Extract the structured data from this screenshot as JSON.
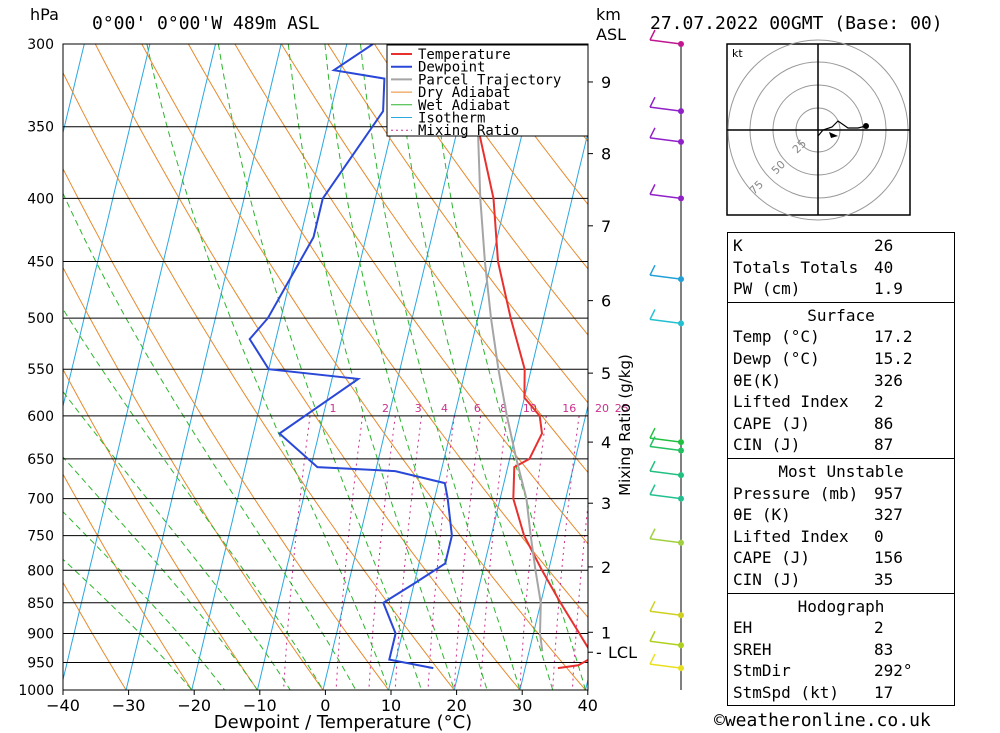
{
  "header": {
    "units_hpa": "hPa",
    "location": "0°00' 0°00'W 489m ASL",
    "units_km": "km",
    "units_asl": "ASL",
    "datetime": "27.07.2022 00GMT (Base: 00)"
  },
  "chart_data": {
    "type": "line",
    "title": "0°00' 0°00'W 489m ASL",
    "xlabel": "Dewpoint / Temperature (°C)",
    "ylabel": "hPa",
    "mixing_ratio_label": "Mixing Ratio (g/kg)",
    "xlim": [
      -40,
      40
    ],
    "ylim": [
      1000,
      300
    ],
    "x_ticks": [
      "−40",
      "−30",
      "−20",
      "−10",
      "0",
      "10",
      "20",
      "30",
      "40"
    ],
    "pressure_levels": [
      300,
      350,
      400,
      450,
      500,
      550,
      600,
      650,
      700,
      750,
      800,
      850,
      900,
      950,
      1000
    ],
    "km_ticks": [
      {
        "label": "9",
        "p": 322
      },
      {
        "label": "8",
        "p": 368
      },
      {
        "label": "7",
        "p": 421
      },
      {
        "label": "6",
        "p": 484
      },
      {
        "label": "5",
        "p": 554
      },
      {
        "label": "4",
        "p": 630
      },
      {
        "label": "3",
        "p": 706
      },
      {
        "label": "2",
        "p": 795
      },
      {
        "label": "1",
        "p": 898
      }
    ],
    "lcl": {
      "label": "LCL",
      "p": 932
    },
    "mixing_ratio_values": [
      {
        "label": "1",
        "x": -6
      },
      {
        "label": "2",
        "x": 2
      },
      {
        "label": "3",
        "x": 7
      },
      {
        "label": "4",
        "x": 11
      },
      {
        "label": "6",
        "x": 16
      },
      {
        "label": "8",
        "x": 20
      },
      {
        "label": "10",
        "x": 24
      },
      {
        "label": "16",
        "x": 30
      },
      {
        "label": "20",
        "x": 35
      },
      {
        "label": "25",
        "x": 38
      }
    ],
    "legend": [
      "Temperature",
      "Dewpoint",
      "Parcel Trajectory",
      "Dry Adiabat",
      "Wet Adiabat",
      "Isotherm",
      "Mixing Ratio"
    ],
    "legend_position": "top-right",
    "colors": {
      "temperature": "#e8302f",
      "dewpoint": "#2a48d8",
      "parcel": "#a5a5a5",
      "dry_adiabat": "#e68a2e",
      "wet_adiabat": "#2cb52c",
      "isotherm": "#2aa8e0",
      "mixing_ratio": "#cc2f8f"
    },
    "series": [
      {
        "name": "Temperature",
        "points": [
          [
            300,
            -2
          ],
          [
            305,
            -2
          ],
          [
            315,
            -1.5
          ],
          [
            320,
            -1
          ],
          [
            350,
            3
          ],
          [
            400,
            8
          ],
          [
            450,
            11
          ],
          [
            500,
            15
          ],
          [
            550,
            19
          ],
          [
            580,
            20
          ],
          [
            600,
            23
          ],
          [
            620,
            24
          ],
          [
            650,
            23
          ],
          [
            660,
            21
          ],
          [
            700,
            22
          ],
          [
            750,
            25
          ],
          [
            800,
            29
          ],
          [
            850,
            33
          ],
          [
            900,
            37
          ],
          [
            940,
            40
          ],
          [
            955,
            38
          ],
          [
            960,
            35
          ]
        ]
      },
      {
        "name": "Dewpoint",
        "points": [
          [
            300,
            -16
          ],
          [
            315,
            -21
          ],
          [
            320,
            -13
          ],
          [
            340,
            -12
          ],
          [
            400,
            -18
          ],
          [
            430,
            -18
          ],
          [
            500,
            -22
          ],
          [
            520,
            -24
          ],
          [
            550,
            -20
          ],
          [
            560,
            -6
          ],
          [
            620,
            -16
          ],
          [
            660,
            -9
          ],
          [
            665,
            3
          ],
          [
            680,
            11
          ],
          [
            700,
            12
          ],
          [
            750,
            14
          ],
          [
            790,
            14
          ],
          [
            820,
            10
          ],
          [
            850,
            6
          ],
          [
            900,
            9
          ],
          [
            945,
            9
          ],
          [
            960,
            16
          ]
        ]
      },
      {
        "name": "Parcel Trajectory",
        "points": [
          [
            300,
            -7
          ],
          [
            350,
            3
          ],
          [
            400,
            6
          ],
          [
            450,
            9
          ],
          [
            500,
            12
          ],
          [
            550,
            15
          ],
          [
            600,
            18
          ],
          [
            650,
            21
          ],
          [
            700,
            24
          ],
          [
            750,
            26
          ],
          [
            800,
            28
          ],
          [
            850,
            30
          ],
          [
            900,
            31
          ],
          [
            930,
            32
          ]
        ]
      }
    ],
    "wind_barbs": [
      {
        "p": 300,
        "color": "#c0168f"
      },
      {
        "p": 340,
        "color": "#9020c8"
      },
      {
        "p": 360,
        "color": "#9020c8"
      },
      {
        "p": 400,
        "color": "#9020c8"
      },
      {
        "p": 465,
        "color": "#22a0d8"
      },
      {
        "p": 505,
        "color": "#22c0d0"
      },
      {
        "p": 630,
        "color": "#22c040"
      },
      {
        "p": 640,
        "color": "#22c060"
      },
      {
        "p": 670,
        "color": "#22c080"
      },
      {
        "p": 700,
        "color": "#22c090"
      },
      {
        "p": 760,
        "color": "#a0d040"
      },
      {
        "p": 870,
        "color": "#d0d020"
      },
      {
        "p": 920,
        "color": "#b0d020"
      },
      {
        "p": 960,
        "color": "#e8e020"
      }
    ]
  },
  "hodograph": {
    "unit": "kt",
    "ring_labels": [
      "25",
      "50",
      "75"
    ]
  },
  "stats": {
    "general": [
      {
        "label": "K",
        "value": "26"
      },
      {
        "label": "Totals Totals",
        "value": "40"
      },
      {
        "label": "PW (cm)",
        "value": "1.9"
      }
    ],
    "surface_title": "Surface",
    "surface": [
      {
        "label": "Temp (°C)",
        "value": "17.2"
      },
      {
        "label": "Dewp (°C)",
        "value": "15.2"
      },
      {
        "label": "θE(K)",
        "value": "326"
      },
      {
        "label": "Lifted Index",
        "value": "2"
      },
      {
        "label": "CAPE (J)",
        "value": "86"
      },
      {
        "label": "CIN (J)",
        "value": "87"
      }
    ],
    "most_unstable_title": "Most Unstable",
    "most_unstable": [
      {
        "label": "Pressure (mb)",
        "value": "957"
      },
      {
        "label": "θE (K)",
        "value": "327"
      },
      {
        "label": "Lifted Index",
        "value": "0"
      },
      {
        "label": "CAPE (J)",
        "value": "156"
      },
      {
        "label": "CIN (J)",
        "value": "35"
      }
    ],
    "hodograph_title": "Hodograph",
    "hodograph": [
      {
        "label": "EH",
        "value": "2"
      },
      {
        "label": "SREH",
        "value": "83"
      },
      {
        "label": "StmDir",
        "value": "292°"
      },
      {
        "label": "StmSpd (kt)",
        "value": "17"
      }
    ]
  },
  "footer": {
    "copyright": "©weatheronline.co.uk"
  }
}
